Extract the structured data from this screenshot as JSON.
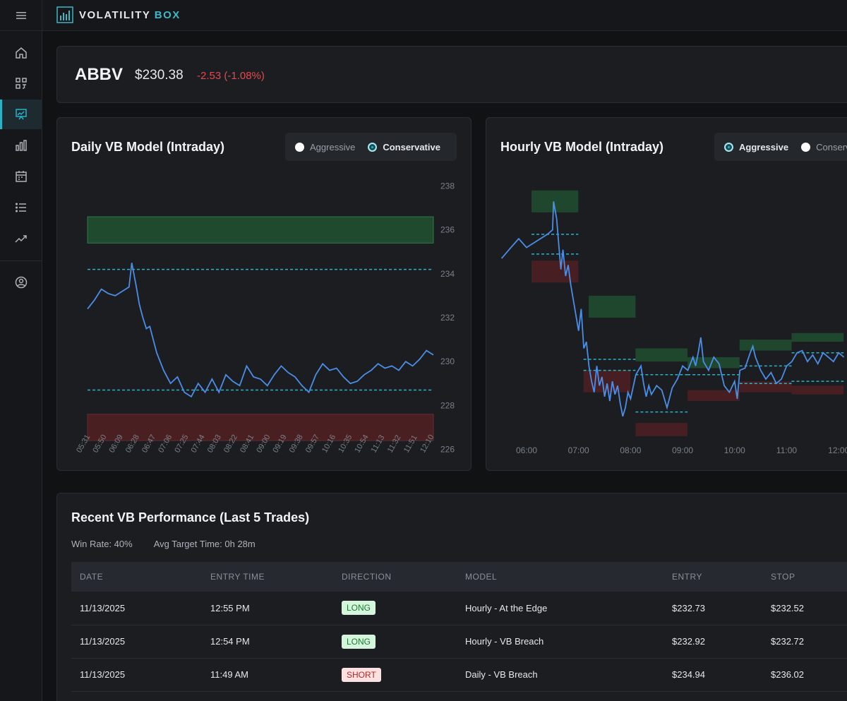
{
  "brand": {
    "name_main": "VOLATILITY ",
    "name_accent": "BOX"
  },
  "icons": {
    "menu": "hamburger-icon",
    "sidebar": [
      "home-icon",
      "grid-icon",
      "chart-presentation-icon",
      "bar-chart-icon",
      "calendar-icon",
      "list-icon",
      "trend-up-icon",
      "user-circle-icon"
    ]
  },
  "colors": {
    "accent": "#28b3c6",
    "negative": "#e5484d",
    "line": "#4a8ee8",
    "zone_green": "#1f4a2e",
    "zone_red": "#4a1f22"
  },
  "ticker": {
    "symbol": "ABBV",
    "price": "$230.38",
    "change": "-2.53 (-1.08%)"
  },
  "daily": {
    "title": "Daily VB Model (Intraday)",
    "options": [
      "Aggressive",
      "Conservative"
    ],
    "selected": "Conservative",
    "chart_data": {
      "type": "line",
      "y_ticks": [
        "238",
        "236",
        "234",
        "232",
        "230",
        "228",
        "226"
      ],
      "ylim": [
        225.5,
        238.5
      ],
      "x_ticks": [
        "05:31",
        "05:50",
        "06:09",
        "06:28",
        "06:47",
        "07:06",
        "07:25",
        "07:44",
        "08:03",
        "08:22",
        "08:41",
        "09:00",
        "09:19",
        "09:38",
        "09:57",
        "10:16",
        "10:35",
        "10:54",
        "11:13",
        "11:32",
        "11:51",
        "12:10"
      ],
      "zones": [
        {
          "kind": "green",
          "low": 235.4,
          "high": 236.6
        },
        {
          "kind": "red",
          "low": 226.4,
          "high": 227.6
        }
      ],
      "levels": [
        234.2,
        228.7
      ],
      "price": [
        [
          0,
          232.4
        ],
        [
          1,
          232.8
        ],
        [
          2,
          233.3
        ],
        [
          3,
          233.1
        ],
        [
          4,
          233.0
        ],
        [
          5,
          233.2
        ],
        [
          6,
          233.4
        ],
        [
          6.4,
          234.5
        ],
        [
          7,
          233.5
        ],
        [
          7.5,
          232.6
        ],
        [
          8,
          232.0
        ],
        [
          8.5,
          231.5
        ],
        [
          9,
          231.6
        ],
        [
          10,
          230.4
        ],
        [
          11,
          229.6
        ],
        [
          12,
          229.0
        ],
        [
          13,
          229.3
        ],
        [
          14,
          228.6
        ],
        [
          15,
          228.4
        ],
        [
          16,
          229.0
        ],
        [
          17,
          228.6
        ],
        [
          18,
          229.2
        ],
        [
          19,
          228.6
        ],
        [
          20,
          229.4
        ],
        [
          21,
          229.1
        ],
        [
          22,
          228.9
        ],
        [
          23,
          229.8
        ],
        [
          24,
          229.3
        ],
        [
          25,
          229.2
        ],
        [
          26,
          228.9
        ],
        [
          27,
          229.4
        ],
        [
          28,
          229.8
        ],
        [
          29,
          229.5
        ],
        [
          30,
          229.3
        ],
        [
          31,
          228.9
        ],
        [
          32,
          228.6
        ],
        [
          33,
          229.4
        ],
        [
          34,
          229.9
        ],
        [
          35,
          229.6
        ],
        [
          36,
          229.7
        ],
        [
          37,
          229.3
        ],
        [
          38,
          229.0
        ],
        [
          39,
          229.1
        ],
        [
          40,
          229.4
        ],
        [
          41,
          229.6
        ],
        [
          42,
          229.9
        ],
        [
          43,
          229.7
        ],
        [
          44,
          229.8
        ],
        [
          45,
          229.6
        ],
        [
          46,
          230.0
        ],
        [
          47,
          229.8
        ],
        [
          48,
          230.1
        ],
        [
          49,
          230.5
        ],
        [
          50,
          230.3
        ]
      ]
    }
  },
  "hourly": {
    "title": "Hourly VB Model (Intraday)",
    "options": [
      "Aggressive",
      "Conservative"
    ],
    "selected": "Aggressive",
    "chart_data": {
      "type": "line",
      "ylim": [
        225.5,
        238.5
      ],
      "x_ticks": [
        "06:00",
        "07:00",
        "08:00",
        "09:00",
        "10:00",
        "11:00",
        "12:00"
      ],
      "zones": [
        {
          "kind": "green",
          "x0": 6.0,
          "x1": 6.9,
          "low": 236.8,
          "high": 237.8
        },
        {
          "kind": "red",
          "x0": 6.0,
          "x1": 6.9,
          "low": 233.6,
          "high": 234.6
        },
        {
          "kind": "green",
          "x0": 7.1,
          "x1": 8.0,
          "low": 232.0,
          "high": 233.0
        },
        {
          "kind": "red",
          "x0": 7.0,
          "x1": 7.9,
          "low": 228.6,
          "high": 229.6
        },
        {
          "kind": "green",
          "x0": 8.0,
          "x1": 9.0,
          "low": 230.0,
          "high": 230.6
        },
        {
          "kind": "red",
          "x0": 8.0,
          "x1": 9.0,
          "low": 226.6,
          "high": 227.2
        },
        {
          "kind": "green",
          "x0": 9.0,
          "x1": 10.0,
          "low": 229.7,
          "high": 230.2
        },
        {
          "kind": "red",
          "x0": 9.0,
          "x1": 10.0,
          "low": 228.2,
          "high": 228.7
        },
        {
          "kind": "green",
          "x0": 10.0,
          "x1": 11.0,
          "low": 230.5,
          "high": 231.0
        },
        {
          "kind": "red",
          "x0": 10.0,
          "x1": 11.0,
          "low": 228.6,
          "high": 229.1
        },
        {
          "kind": "green",
          "x0": 11.0,
          "x1": 12.0,
          "low": 230.9,
          "high": 231.3
        },
        {
          "kind": "red",
          "x0": 11.0,
          "x1": 12.0,
          "low": 228.5,
          "high": 228.9
        }
      ],
      "levels": [
        {
          "x0": 6.0,
          "x1": 6.9,
          "y": 235.8
        },
        {
          "x0": 6.0,
          "x1": 6.9,
          "y": 234.9
        },
        {
          "x0": 7.0,
          "x1": 8.0,
          "y": 230.1
        },
        {
          "x0": 7.0,
          "x1": 8.0,
          "y": 229.6
        },
        {
          "x0": 8.0,
          "x1": 9.0,
          "y": 229.4
        },
        {
          "x0": 8.0,
          "x1": 9.0,
          "y": 227.7
        },
        {
          "x0": 9.0,
          "x1": 10.0,
          "y": 229.4
        },
        {
          "x0": 10.0,
          "x1": 11.0,
          "y": 229.8
        },
        {
          "x0": 10.0,
          "x1": 11.0,
          "y": 229.0
        },
        {
          "x0": 11.0,
          "x1": 12.0,
          "y": 230.4
        },
        {
          "x0": 11.0,
          "x1": 12.0,
          "y": 229.1
        }
      ],
      "price": [
        [
          5.52,
          234.7
        ],
        [
          5.7,
          235.2
        ],
        [
          5.85,
          235.6
        ],
        [
          6.0,
          235.2
        ],
        [
          6.2,
          235.5
        ],
        [
          6.4,
          235.8
        ],
        [
          6.5,
          236.0
        ],
        [
          6.52,
          237.3
        ],
        [
          6.58,
          236.5
        ],
        [
          6.62,
          235.3
        ],
        [
          6.66,
          234.2
        ],
        [
          6.7,
          235.1
        ],
        [
          6.75,
          233.9
        ],
        [
          6.8,
          234.4
        ],
        [
          6.85,
          233.5
        ],
        [
          6.9,
          232.8
        ],
        [
          6.95,
          232.1
        ],
        [
          7.0,
          231.4
        ],
        [
          7.05,
          232.4
        ],
        [
          7.1,
          230.6
        ],
        [
          7.15,
          230.9
        ],
        [
          7.2,
          229.8
        ],
        [
          7.25,
          229.1
        ],
        [
          7.3,
          228.6
        ],
        [
          7.35,
          229.8
        ],
        [
          7.4,
          228.9
        ],
        [
          7.45,
          229.3
        ],
        [
          7.5,
          228.4
        ],
        [
          7.55,
          229.0
        ],
        [
          7.6,
          228.2
        ],
        [
          7.65,
          229.1
        ],
        [
          7.7,
          228.5
        ],
        [
          7.75,
          228.9
        ],
        [
          7.8,
          228.1
        ],
        [
          7.85,
          227.5
        ],
        [
          7.9,
          227.9
        ],
        [
          7.95,
          228.6
        ],
        [
          8.0,
          228.3
        ],
        [
          8.1,
          229.4
        ],
        [
          8.2,
          229.8
        ],
        [
          8.25,
          229.0
        ],
        [
          8.3,
          228.4
        ],
        [
          8.35,
          228.9
        ],
        [
          8.4,
          228.5
        ],
        [
          8.5,
          228.9
        ],
        [
          8.6,
          228.7
        ],
        [
          8.7,
          227.9
        ],
        [
          8.8,
          228.8
        ],
        [
          8.9,
          229.2
        ],
        [
          9.0,
          229.8
        ],
        [
          9.1,
          229.6
        ],
        [
          9.2,
          230.2
        ],
        [
          9.25,
          229.8
        ],
        [
          9.3,
          230.4
        ],
        [
          9.35,
          231.1
        ],
        [
          9.4,
          230.0
        ],
        [
          9.5,
          229.6
        ],
        [
          9.6,
          230.2
        ],
        [
          9.7,
          229.9
        ],
        [
          9.8,
          228.9
        ],
        [
          9.9,
          228.6
        ],
        [
          10.0,
          229.1
        ],
        [
          10.05,
          228.3
        ],
        [
          10.1,
          229.6
        ],
        [
          10.2,
          229.7
        ],
        [
          10.3,
          230.4
        ],
        [
          10.35,
          230.7
        ],
        [
          10.4,
          230.2
        ],
        [
          10.5,
          229.6
        ],
        [
          10.6,
          229.2
        ],
        [
          10.7,
          229.5
        ],
        [
          10.8,
          229.0
        ],
        [
          10.9,
          229.2
        ],
        [
          11.0,
          229.8
        ],
        [
          11.1,
          230.0
        ],
        [
          11.2,
          230.4
        ],
        [
          11.3,
          230.5
        ],
        [
          11.4,
          230.0
        ],
        [
          11.5,
          230.3
        ],
        [
          11.6,
          229.9
        ],
        [
          11.7,
          230.4
        ],
        [
          11.8,
          230.2
        ],
        [
          11.9,
          230.0
        ],
        [
          12.0,
          230.4
        ],
        [
          12.1,
          230.2
        ]
      ]
    }
  },
  "performance": {
    "title": "Recent VB Performance (Last 5 Trades)",
    "win_rate": "Win Rate: 40%",
    "avg_target": "Avg Target Time: 0h 28m",
    "columns": [
      "DATE",
      "ENTRY TIME",
      "DIRECTION",
      "MODEL",
      "ENTRY",
      "STOP"
    ],
    "rows": [
      {
        "date": "11/13/2025",
        "time": "12:55 PM",
        "direction": "LONG",
        "model": "Hourly - At the Edge",
        "entry": "$232.73",
        "stop": "$232.52"
      },
      {
        "date": "11/13/2025",
        "time": "12:54 PM",
        "direction": "LONG",
        "model": "Hourly - VB Breach",
        "entry": "$232.92",
        "stop": "$232.72"
      },
      {
        "date": "11/13/2025",
        "time": "11:49 AM",
        "direction": "SHORT",
        "model": "Daily - VB Breach",
        "entry": "$234.94",
        "stop": "$236.02"
      }
    ]
  }
}
